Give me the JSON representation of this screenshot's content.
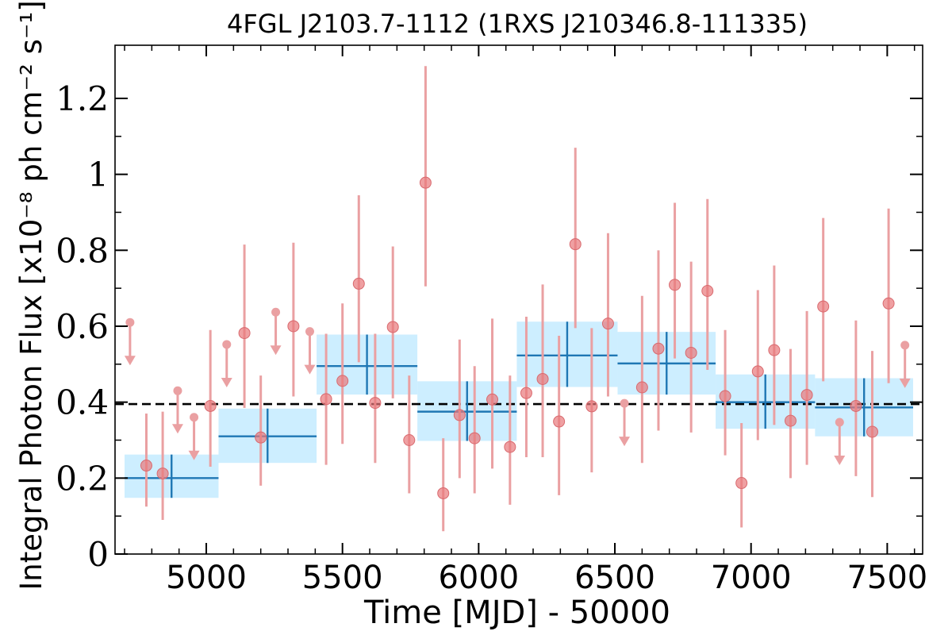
{
  "chart_data": {
    "type": "scatter",
    "title": "4FGL J2103.7-1112 (1RXS J210346.8-111335)",
    "xlabel": "Time [MJD] - 50000",
    "ylabel": "Integral Photon Flux [x10⁻⁸ ph cm⁻² s⁻¹]",
    "xlim": [
      4665,
      7630
    ],
    "ylim": [
      0,
      1.34
    ],
    "xticks": [
      5000,
      5500,
      6000,
      6500,
      7000,
      7500
    ],
    "xtick_labels": [
      "5000",
      "5500",
      "6000",
      "6500",
      "7000",
      "7500"
    ],
    "yticks": [
      0,
      0.2,
      0.4,
      0.6,
      0.8,
      1.0,
      1.2
    ],
    "ytick_labels": [
      "0",
      "0.2",
      "0.4",
      "0.6",
      "0.8",
      "1",
      "1.2"
    ],
    "mean_flux": 0.395,
    "colors": {
      "points": "#e8777b",
      "errorbars": "#eaa0a2",
      "bin_fill": "#cdeeff",
      "bin_line": "#1f77b4",
      "mean_line": "#000000"
    },
    "points": [
      {
        "x": 4780,
        "y": 0.233,
        "ylo": 0.125,
        "yhi": 0.37
      },
      {
        "x": 4840,
        "y": 0.212,
        "ylo": 0.09,
        "yhi": 0.375
      },
      {
        "x": 5015,
        "y": 0.39,
        "ylo": 0.23,
        "yhi": 0.59
      },
      {
        "x": 5140,
        "y": 0.582,
        "ylo": 0.385,
        "yhi": 0.815
      },
      {
        "x": 5200,
        "y": 0.307,
        "ylo": 0.18,
        "yhi": 0.47
      },
      {
        "x": 5320,
        "y": 0.6,
        "ylo": 0.415,
        "yhi": 0.82
      },
      {
        "x": 5440,
        "y": 0.408,
        "ylo": 0.235,
        "yhi": 0.58
      },
      {
        "x": 5500,
        "y": 0.456,
        "ylo": 0.29,
        "yhi": 0.66
      },
      {
        "x": 5560,
        "y": 0.712,
        "ylo": 0.505,
        "yhi": 0.945
      },
      {
        "x": 5620,
        "y": 0.398,
        "ylo": 0.24,
        "yhi": 0.58
      },
      {
        "x": 5685,
        "y": 0.598,
        "ylo": 0.41,
        "yhi": 0.81
      },
      {
        "x": 5745,
        "y": 0.3,
        "ylo": 0.16,
        "yhi": 0.47
      },
      {
        "x": 5805,
        "y": 0.978,
        "ylo": 0.705,
        "yhi": 1.285
      },
      {
        "x": 5870,
        "y": 0.16,
        "ylo": 0.06,
        "yhi": 0.305
      },
      {
        "x": 5930,
        "y": 0.366,
        "ylo": 0.2,
        "yhi": 0.565
      },
      {
        "x": 5985,
        "y": 0.305,
        "ylo": 0.16,
        "yhi": 0.495
      },
      {
        "x": 6050,
        "y": 0.407,
        "ylo": 0.225,
        "yhi": 0.62
      },
      {
        "x": 6115,
        "y": 0.282,
        "ylo": 0.13,
        "yhi": 0.47
      },
      {
        "x": 6175,
        "y": 0.424,
        "ylo": 0.255,
        "yhi": 0.625
      },
      {
        "x": 6235,
        "y": 0.461,
        "ylo": 0.255,
        "yhi": 0.71
      },
      {
        "x": 6295,
        "y": 0.349,
        "ylo": 0.155,
        "yhi": 0.575
      },
      {
        "x": 6355,
        "y": 0.816,
        "ylo": 0.595,
        "yhi": 1.07
      },
      {
        "x": 6415,
        "y": 0.389,
        "ylo": 0.215,
        "yhi": 0.595
      },
      {
        "x": 6475,
        "y": 0.607,
        "ylo": 0.415,
        "yhi": 0.845
      },
      {
        "x": 6600,
        "y": 0.439,
        "ylo": 0.24,
        "yhi": 0.68
      },
      {
        "x": 6660,
        "y": 0.541,
        "ylo": 0.325,
        "yhi": 0.8
      },
      {
        "x": 6720,
        "y": 0.709,
        "ylo": 0.515,
        "yhi": 0.925
      },
      {
        "x": 6780,
        "y": 0.53,
        "ylo": 0.32,
        "yhi": 0.77
      },
      {
        "x": 6840,
        "y": 0.693,
        "ylo": 0.485,
        "yhi": 0.935
      },
      {
        "x": 6905,
        "y": 0.416,
        "ylo": 0.26,
        "yhi": 0.59
      },
      {
        "x": 6965,
        "y": 0.187,
        "ylo": 0.07,
        "yhi": 0.345
      },
      {
        "x": 7025,
        "y": 0.481,
        "ylo": 0.3,
        "yhi": 0.695
      },
      {
        "x": 7085,
        "y": 0.537,
        "ylo": 0.34,
        "yhi": 0.76
      },
      {
        "x": 7145,
        "y": 0.351,
        "ylo": 0.2,
        "yhi": 0.54
      },
      {
        "x": 7205,
        "y": 0.419,
        "ylo": 0.235,
        "yhi": 0.64
      },
      {
        "x": 7265,
        "y": 0.652,
        "ylo": 0.455,
        "yhi": 0.885
      },
      {
        "x": 7385,
        "y": 0.39,
        "ylo": 0.205,
        "yhi": 0.615
      },
      {
        "x": 7445,
        "y": 0.322,
        "ylo": 0.15,
        "yhi": 0.535
      },
      {
        "x": 7505,
        "y": 0.66,
        "ylo": 0.45,
        "yhi": 0.91
      }
    ],
    "upper_limits": [
      {
        "x": 4720,
        "y": 0.61
      },
      {
        "x": 4895,
        "y": 0.43
      },
      {
        "x": 4955,
        "y": 0.36
      },
      {
        "x": 5075,
        "y": 0.552
      },
      {
        "x": 5255,
        "y": 0.637
      },
      {
        "x": 5380,
        "y": 0.586
      },
      {
        "x": 6535,
        "y": 0.397
      },
      {
        "x": 7325,
        "y": 0.347
      },
      {
        "x": 7565,
        "y": 0.55
      }
    ],
    "bins": [
      {
        "x0": 4700,
        "x1": 5045,
        "y": 0.2,
        "ylo": 0.148,
        "yhi": 0.262
      },
      {
        "x0": 5045,
        "x1": 5405,
        "y": 0.31,
        "ylo": 0.24,
        "yhi": 0.383
      },
      {
        "x0": 5405,
        "x1": 5775,
        "y": 0.495,
        "ylo": 0.42,
        "yhi": 0.578
      },
      {
        "x0": 5775,
        "x1": 6140,
        "y": 0.375,
        "ylo": 0.298,
        "yhi": 0.455
      },
      {
        "x0": 6140,
        "x1": 6510,
        "y": 0.523,
        "ylo": 0.44,
        "yhi": 0.612
      },
      {
        "x0": 6510,
        "x1": 6870,
        "y": 0.502,
        "ylo": 0.42,
        "yhi": 0.585
      },
      {
        "x0": 6870,
        "x1": 7235,
        "y": 0.4,
        "ylo": 0.33,
        "yhi": 0.473
      },
      {
        "x0": 7235,
        "x1": 7595,
        "y": 0.386,
        "ylo": 0.31,
        "yhi": 0.463
      }
    ]
  }
}
